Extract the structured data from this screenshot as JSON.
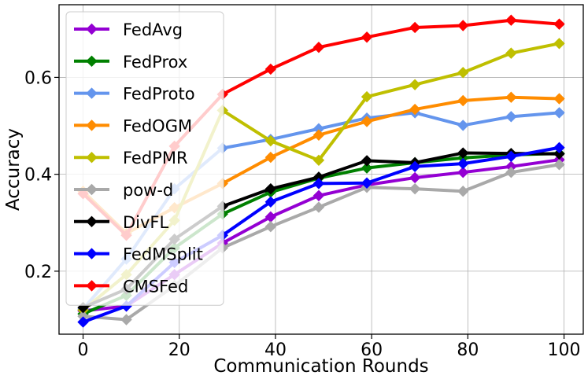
{
  "chart_data": {
    "type": "line",
    "title": "",
    "xlabel": "Communication Rounds",
    "ylabel": "Accuracy",
    "xlim": [
      -5,
      104
    ],
    "ylim": [
      0.07,
      0.75
    ],
    "xticks": [
      0,
      20,
      40,
      60,
      80,
      100
    ],
    "yticks": [
      0.2,
      0.4,
      0.6
    ],
    "ytick_labels": [
      "0.2",
      "0.4",
      "0.6"
    ],
    "grid": true,
    "legend_position": "upper-left",
    "x": [
      0,
      9,
      19,
      29,
      39,
      49,
      59,
      69,
      79,
      89,
      99
    ],
    "series": [
      {
        "name": "FedAvg",
        "color": "#9400D3",
        "values": [
          0.118,
          0.128,
          0.193,
          0.258,
          0.312,
          0.356,
          0.378,
          0.393,
          0.404,
          0.416,
          0.43
        ]
      },
      {
        "name": "FedProx",
        "color": "#008000",
        "values": [
          0.112,
          0.15,
          0.248,
          0.318,
          0.363,
          0.392,
          0.413,
          0.424,
          0.434,
          0.44,
          0.443
        ]
      },
      {
        "name": "FedProto",
        "color": "#6495ED",
        "values": [
          0.122,
          0.225,
          0.37,
          0.454,
          0.472,
          0.494,
          0.516,
          0.527,
          0.501,
          0.519,
          0.527
        ]
      },
      {
        "name": "FedOGM",
        "color": "#FF8C00",
        "values": [
          0.365,
          0.278,
          0.331,
          0.381,
          0.435,
          0.481,
          0.509,
          0.534,
          0.552,
          0.559,
          0.556
        ]
      },
      {
        "name": "FedPMR",
        "color": "#BFBF00",
        "values": [
          0.12,
          0.193,
          0.305,
          0.532,
          0.469,
          0.429,
          0.56,
          0.585,
          0.61,
          0.65,
          0.67
        ]
      },
      {
        "name": "pow-d",
        "color": "#A9A9A9",
        "values": [
          0.107,
          0.1,
          0.17,
          0.248,
          0.292,
          0.332,
          0.373,
          0.37,
          0.365,
          0.404,
          0.42
        ]
      },
      {
        "name": "DivFL",
        "color": "#000000",
        "values": [
          0.125,
          0.163,
          0.266,
          0.334,
          0.37,
          0.394,
          0.428,
          0.424,
          0.444,
          0.443,
          0.442
        ]
      },
      {
        "name": "FedMSplit",
        "color": "#0000FF",
        "values": [
          0.095,
          0.128,
          0.218,
          0.274,
          0.343,
          0.381,
          0.382,
          0.416,
          0.422,
          0.437,
          0.455
        ]
      },
      {
        "name": "CMSFed",
        "color": "#FF0000",
        "values": [
          0.36,
          0.274,
          0.458,
          0.565,
          0.617,
          0.662,
          0.683,
          0.703,
          0.707,
          0.718,
          0.71
        ]
      }
    ]
  }
}
